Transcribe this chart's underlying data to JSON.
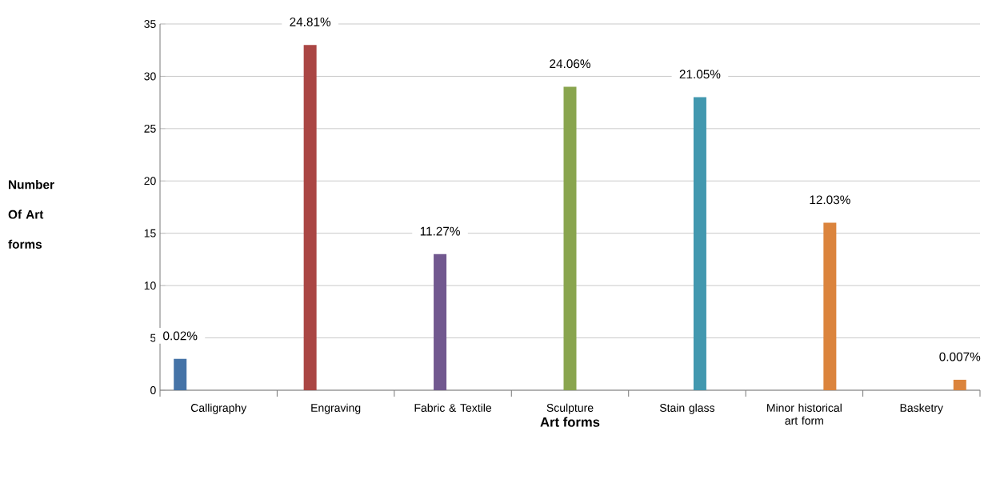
{
  "chart_data": {
    "type": "bar",
    "xlabel": "Art forms",
    "ylabel": "Number Of Art forms",
    "categories": [
      "Calligraphy",
      "Engraving",
      "Fabric & Textile",
      "Sculpture",
      "Stain glass",
      "Minor historical art form",
      "Basketry"
    ],
    "series": [
      {
        "color": "#4573a7",
        "values": [
          3,
          null,
          null,
          null,
          null,
          null,
          null
        ]
      },
      {
        "color": "#aa4644",
        "values": [
          null,
          33,
          null,
          null,
          null,
          null,
          null
        ]
      },
      {
        "color": "#71588f",
        "values": [
          null,
          null,
          13,
          null,
          null,
          null,
          null
        ]
      },
      {
        "color": "#89a54e",
        "values": [
          null,
          null,
          null,
          29,
          null,
          null,
          null
        ]
      },
      {
        "color": "#4298af",
        "values": [
          null,
          null,
          null,
          null,
          28,
          null,
          null
        ]
      },
      {
        "color": "#db843d",
        "values": [
          null,
          null,
          null,
          null,
          null,
          16,
          null
        ]
      },
      {
        "color": "#db843d",
        "values": [
          null,
          null,
          null,
          null,
          null,
          null,
          1
        ]
      }
    ],
    "annotations": [
      "0.02%",
      "24.81%",
      "11.27%",
      "24.06%",
      "21.05%",
      "12.03%",
      "0.007%"
    ],
    "ylim": [
      0,
      35
    ],
    "yticks": [
      0,
      5,
      10,
      15,
      20,
      25,
      30,
      35
    ],
    "grid": "y"
  }
}
